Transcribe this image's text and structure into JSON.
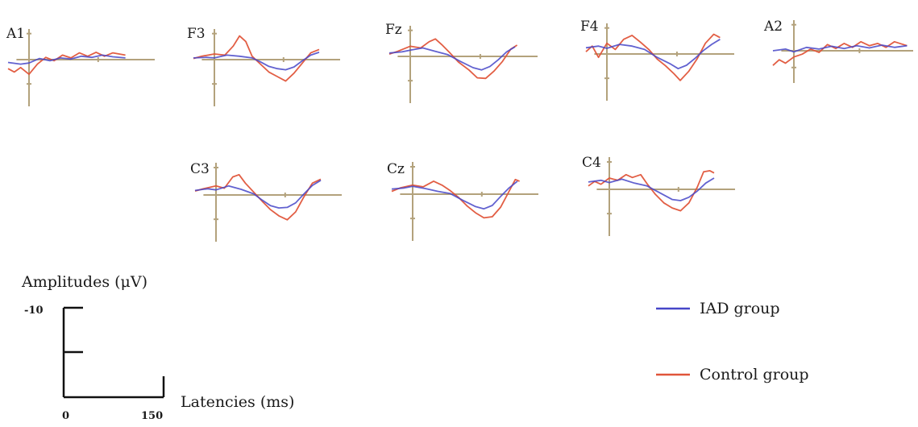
{
  "chart_data": {
    "type": "line",
    "x_unit": "ms",
    "y_unit": "μV",
    "colors": {
      "iad": "#4646c8",
      "control": "#e0553a",
      "axis": "#b3a27c",
      "scale": "#111111"
    },
    "legend": [
      {
        "key": "iad",
        "label": "IAD group"
      },
      {
        "key": "control",
        "label": "Control group"
      }
    ],
    "scale_bar": {
      "ylabel": "Amplitudes (μV)",
      "xlabel": "Latencies (ms)",
      "y_tick_label": "-10",
      "x_tick_labels": [
        "0",
        "150"
      ],
      "y_value": -10,
      "x_values": [
        0,
        150
      ]
    },
    "channels": [
      {
        "name": "A1",
        "iad": [
          [
            -50,
            -0.5
          ],
          [
            -20,
            -0.8
          ],
          [
            0,
            -0.6
          ],
          [
            25,
            0.2
          ],
          [
            50,
            -0.2
          ],
          [
            75,
            0.3
          ],
          [
            100,
            0.1
          ],
          [
            125,
            0.6
          ],
          [
            150,
            0.4
          ],
          [
            175,
            0.8
          ],
          [
            200,
            0.5
          ],
          [
            230,
            0.3
          ]
        ],
        "control": [
          [
            -50,
            -1.6
          ],
          [
            -35,
            -2.2
          ],
          [
            -20,
            -1.4
          ],
          [
            0,
            -2.6
          ],
          [
            20,
            -0.8
          ],
          [
            40,
            0.4
          ],
          [
            60,
            -0.2
          ],
          [
            80,
            0.8
          ],
          [
            100,
            0.3
          ],
          [
            120,
            1.2
          ],
          [
            140,
            0.6
          ],
          [
            160,
            1.3
          ],
          [
            180,
            0.6
          ],
          [
            200,
            1.2
          ],
          [
            230,
            0.8
          ]
        ]
      },
      {
        "name": "F3",
        "iad": [
          [
            -50,
            0.3
          ],
          [
            -20,
            0.4
          ],
          [
            0,
            0.3
          ],
          [
            30,
            0.8
          ],
          [
            60,
            0.6
          ],
          [
            90,
            0.3
          ],
          [
            110,
            -0.4
          ],
          [
            130,
            -1.2
          ],
          [
            150,
            -1.6
          ],
          [
            170,
            -1.8
          ],
          [
            190,
            -1.3
          ],
          [
            210,
            -0.2
          ],
          [
            230,
            0.8
          ],
          [
            250,
            1.3
          ]
        ],
        "control": [
          [
            -50,
            0.2
          ],
          [
            -30,
            0.6
          ],
          [
            0,
            1.0
          ],
          [
            25,
            0.8
          ],
          [
            45,
            2.4
          ],
          [
            60,
            4.2
          ],
          [
            75,
            3.2
          ],
          [
            90,
            0.6
          ],
          [
            110,
            -0.8
          ],
          [
            130,
            -2.2
          ],
          [
            150,
            -3.0
          ],
          [
            170,
            -3.8
          ],
          [
            190,
            -2.4
          ],
          [
            210,
            -0.6
          ],
          [
            230,
            1.2
          ],
          [
            250,
            1.8
          ]
        ]
      },
      {
        "name": "Fz",
        "iad": [
          [
            -50,
            0.6
          ],
          [
            -20,
            0.8
          ],
          [
            0,
            1.1
          ],
          [
            30,
            1.5
          ],
          [
            60,
            0.9
          ],
          [
            90,
            0.3
          ],
          [
            120,
            -0.9
          ],
          [
            150,
            -2.0
          ],
          [
            170,
            -2.4
          ],
          [
            190,
            -1.8
          ],
          [
            210,
            -0.6
          ],
          [
            230,
            0.8
          ],
          [
            250,
            1.7
          ]
        ],
        "control": [
          [
            -50,
            0.4
          ],
          [
            -30,
            0.9
          ],
          [
            0,
            1.8
          ],
          [
            25,
            1.5
          ],
          [
            45,
            2.6
          ],
          [
            60,
            3.1
          ],
          [
            75,
            2.1
          ],
          [
            95,
            0.6
          ],
          [
            115,
            -1.0
          ],
          [
            140,
            -2.4
          ],
          [
            160,
            -3.8
          ],
          [
            180,
            -3.9
          ],
          [
            200,
            -2.6
          ],
          [
            220,
            -0.9
          ],
          [
            240,
            1.3
          ],
          [
            255,
            2.0
          ]
        ]
      },
      {
        "name": "F4",
        "iad": [
          [
            -50,
            1.1
          ],
          [
            -20,
            1.4
          ],
          [
            0,
            1.0
          ],
          [
            30,
            1.7
          ],
          [
            60,
            1.4
          ],
          [
            90,
            0.8
          ],
          [
            120,
            -0.6
          ],
          [
            150,
            -1.7
          ],
          [
            170,
            -2.6
          ],
          [
            190,
            -2.0
          ],
          [
            210,
            -0.8
          ],
          [
            230,
            0.6
          ],
          [
            250,
            1.7
          ],
          [
            270,
            2.6
          ]
        ],
        "control": [
          [
            -50,
            0.4
          ],
          [
            -35,
            1.4
          ],
          [
            -20,
            -0.6
          ],
          [
            0,
            1.9
          ],
          [
            20,
            0.8
          ],
          [
            40,
            2.6
          ],
          [
            60,
            3.3
          ],
          [
            80,
            2.1
          ],
          [
            100,
            0.8
          ],
          [
            120,
            -0.9
          ],
          [
            140,
            -2.1
          ],
          [
            160,
            -3.5
          ],
          [
            175,
            -4.7
          ],
          [
            195,
            -3.1
          ],
          [
            215,
            -0.9
          ],
          [
            235,
            1.9
          ],
          [
            255,
            3.5
          ],
          [
            270,
            2.9
          ]
        ]
      },
      {
        "name": "A2",
        "iad": [
          [
            -50,
            0.0
          ],
          [
            -20,
            0.3
          ],
          [
            0,
            -0.2
          ],
          [
            30,
            0.6
          ],
          [
            60,
            0.3
          ],
          [
            90,
            0.8
          ],
          [
            120,
            0.4
          ],
          [
            150,
            0.9
          ],
          [
            180,
            0.5
          ],
          [
            210,
            1.0
          ],
          [
            240,
            0.6
          ],
          [
            270,
            0.9
          ]
        ],
        "control": [
          [
            -50,
            -2.6
          ],
          [
            -35,
            -1.6
          ],
          [
            -20,
            -2.2
          ],
          [
            0,
            -1.1
          ],
          [
            20,
            -0.6
          ],
          [
            40,
            0.3
          ],
          [
            60,
            -0.3
          ],
          [
            80,
            1.1
          ],
          [
            100,
            0.4
          ],
          [
            120,
            1.3
          ],
          [
            140,
            0.6
          ],
          [
            160,
            1.6
          ],
          [
            180,
            0.9
          ],
          [
            200,
            1.3
          ],
          [
            220,
            0.6
          ],
          [
            240,
            1.6
          ],
          [
            270,
            0.9
          ]
        ]
      },
      {
        "name": "C3",
        "iad": [
          [
            -50,
            0.8
          ],
          [
            -20,
            1.1
          ],
          [
            0,
            0.9
          ],
          [
            30,
            1.6
          ],
          [
            60,
            1.0
          ],
          [
            90,
            0.2
          ],
          [
            110,
            -0.9
          ],
          [
            130,
            -1.9
          ],
          [
            150,
            -2.3
          ],
          [
            170,
            -2.2
          ],
          [
            190,
            -1.4
          ],
          [
            210,
            0.2
          ],
          [
            230,
            1.7
          ],
          [
            250,
            2.6
          ]
        ],
        "control": [
          [
            -50,
            0.7
          ],
          [
            -30,
            1.1
          ],
          [
            0,
            1.6
          ],
          [
            20,
            1.2
          ],
          [
            40,
            3.2
          ],
          [
            55,
            3.6
          ],
          [
            70,
            2.1
          ],
          [
            90,
            0.5
          ],
          [
            110,
            -1.1
          ],
          [
            130,
            -2.6
          ],
          [
            150,
            -3.7
          ],
          [
            170,
            -4.4
          ],
          [
            190,
            -3.0
          ],
          [
            210,
            -0.3
          ],
          [
            230,
            2.1
          ],
          [
            250,
            2.8
          ]
        ]
      },
      {
        "name": "Cz",
        "iad": [
          [
            -50,
            0.9
          ],
          [
            -20,
            1.1
          ],
          [
            0,
            1.4
          ],
          [
            30,
            1.0
          ],
          [
            60,
            0.5
          ],
          [
            90,
            0.1
          ],
          [
            120,
            -1.1
          ],
          [
            150,
            -2.2
          ],
          [
            170,
            -2.6
          ],
          [
            190,
            -2.0
          ],
          [
            210,
            -0.4
          ],
          [
            230,
            1.1
          ],
          [
            250,
            2.3
          ]
        ],
        "control": [
          [
            -50,
            0.5
          ],
          [
            -30,
            1.1
          ],
          [
            0,
            1.6
          ],
          [
            25,
            1.3
          ],
          [
            50,
            2.3
          ],
          [
            70,
            1.6
          ],
          [
            90,
            0.6
          ],
          [
            110,
            -0.6
          ],
          [
            130,
            -2.1
          ],
          [
            150,
            -3.3
          ],
          [
            170,
            -4.2
          ],
          [
            190,
            -4.0
          ],
          [
            210,
            -2.3
          ],
          [
            230,
            0.5
          ],
          [
            245,
            2.6
          ],
          [
            255,
            2.3
          ]
        ]
      },
      {
        "name": "C4",
        "iad": [
          [
            -50,
            1.3
          ],
          [
            -20,
            1.6
          ],
          [
            0,
            1.2
          ],
          [
            30,
            1.8
          ],
          [
            60,
            1.1
          ],
          [
            90,
            0.6
          ],
          [
            120,
            -0.6
          ],
          [
            150,
            -1.8
          ],
          [
            170,
            -2.0
          ],
          [
            190,
            -1.4
          ],
          [
            210,
            -0.3
          ],
          [
            230,
            1.1
          ],
          [
            250,
            2.0
          ]
        ],
        "control": [
          [
            -50,
            0.6
          ],
          [
            -35,
            1.4
          ],
          [
            -20,
            0.9
          ],
          [
            0,
            2.0
          ],
          [
            20,
            1.6
          ],
          [
            40,
            2.6
          ],
          [
            55,
            2.1
          ],
          [
            75,
            2.6
          ],
          [
            90,
            1.0
          ],
          [
            110,
            -0.9
          ],
          [
            130,
            -2.4
          ],
          [
            150,
            -3.3
          ],
          [
            170,
            -3.8
          ],
          [
            190,
            -2.4
          ],
          [
            210,
            0.4
          ],
          [
            225,
            3.1
          ],
          [
            240,
            3.3
          ],
          [
            250,
            2.9
          ]
        ]
      }
    ]
  }
}
